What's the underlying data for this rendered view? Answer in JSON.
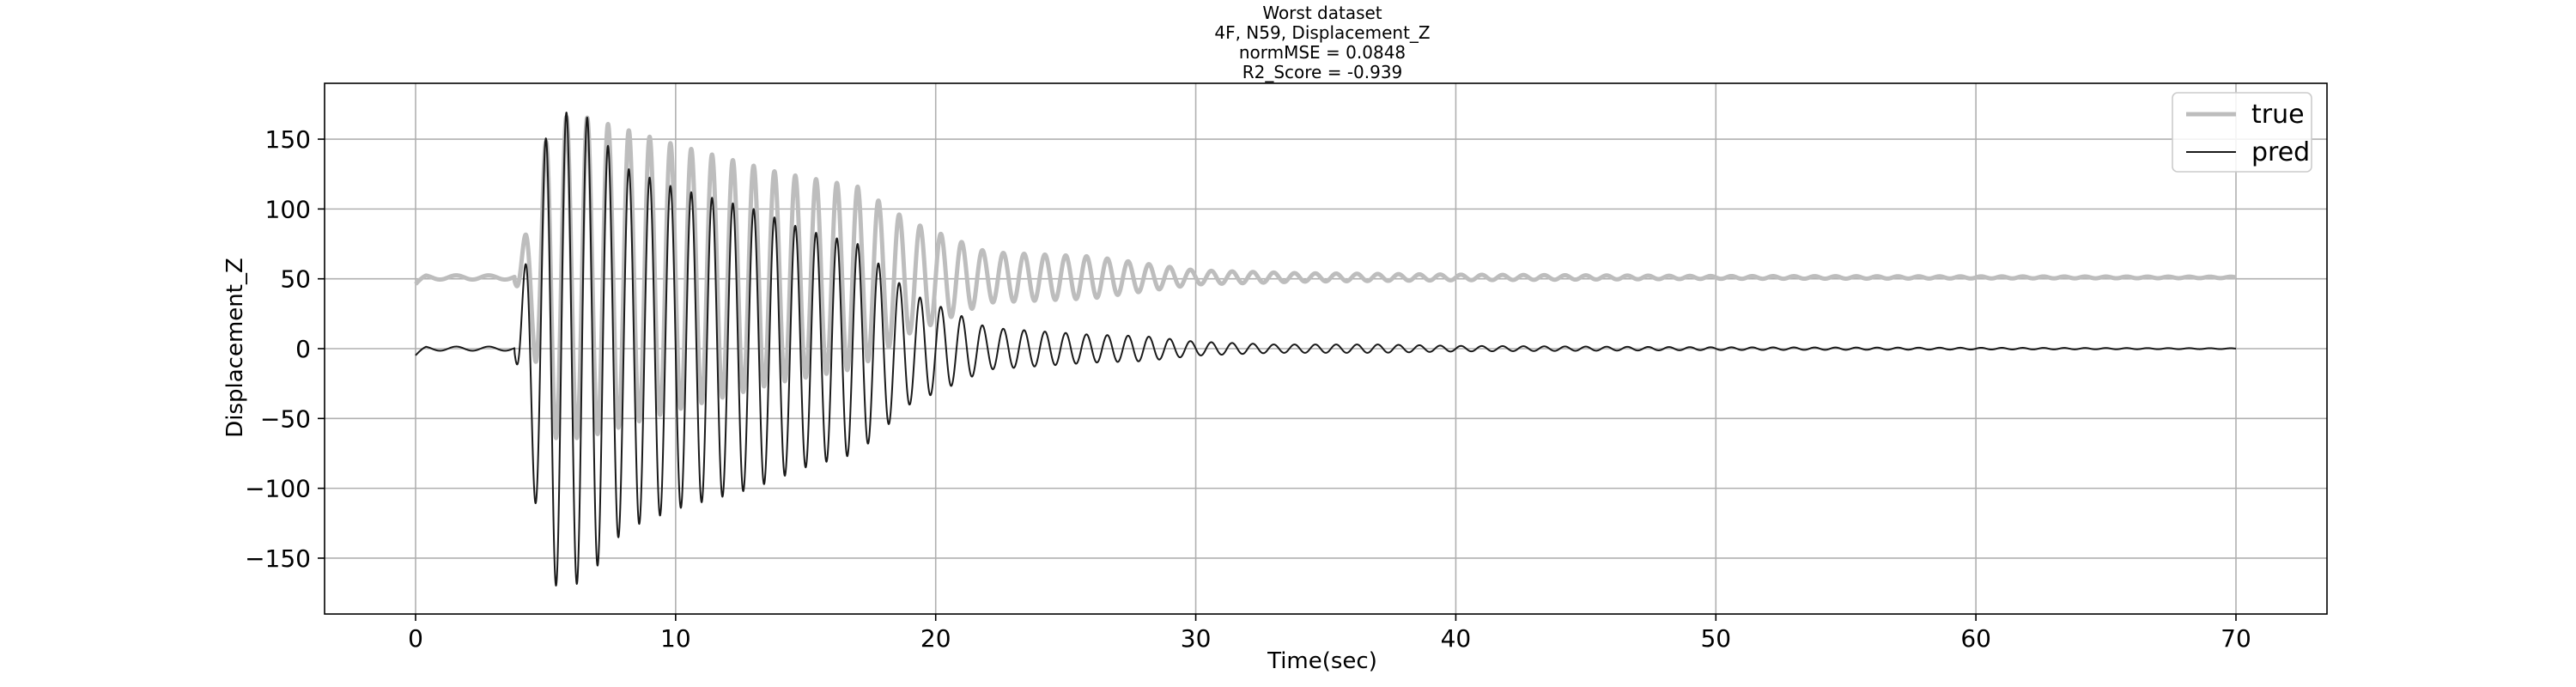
{
  "chart_data": {
    "type": "line",
    "title_lines": [
      "Worst dataset",
      "4F, N59, Displacement_Z",
      "normMSE = 0.0848",
      "R2_Score = -0.939"
    ],
    "xlabel": "Time(sec)",
    "ylabel": "Displacement_Z",
    "xlim": [
      -3.5,
      73.5
    ],
    "ylim": [
      -190,
      190
    ],
    "x_ticks": [
      0,
      10,
      20,
      30,
      40,
      50,
      60,
      70
    ],
    "y_ticks": [
      -150,
      -100,
      -50,
      0,
      50,
      100,
      150
    ],
    "x_tick_labels": [
      "0",
      "10",
      "20",
      "30",
      "40",
      "50",
      "60",
      "70"
    ],
    "y_tick_labels": [
      "−150",
      "−100",
      "−50",
      "0",
      "50",
      "100",
      "150"
    ],
    "grid": true,
    "legend_position": "top-right",
    "series": [
      {
        "name": "true",
        "color": "#bdbdbd",
        "style": "thick",
        "signal": {
          "offset": 51,
          "frequency_hz": 1.25,
          "onset_sec": 3.8,
          "end_sec": 70,
          "envelope": [
            [
              0,
              0
            ],
            [
              3.8,
              2
            ],
            [
              4.5,
              50
            ],
            [
              5.2,
              115
            ],
            [
              6.5,
              115
            ],
            [
              10,
              95
            ],
            [
              14,
              75
            ],
            [
              17,
              65
            ],
            [
              19,
              40
            ],
            [
              22,
              18
            ],
            [
              26,
              15
            ],
            [
              28,
              10
            ],
            [
              30,
              5
            ],
            [
              34,
              3
            ],
            [
              40,
              2
            ],
            [
              50,
              1
            ],
            [
              70,
              0.5
            ]
          ]
        }
      },
      {
        "name": "pred",
        "color": "#1a1a1a",
        "style": "thin",
        "signal": {
          "offset": 0,
          "frequency_hz": 1.25,
          "onset_sec": 3.8,
          "end_sec": 70,
          "envelope": [
            [
              0,
              0
            ],
            [
              3.8,
              2
            ],
            [
              4.5,
              100
            ],
            [
              5.2,
              170
            ],
            [
              6.5,
              168
            ],
            [
              8,
              130
            ],
            [
              10,
              115
            ],
            [
              13,
              100
            ],
            [
              15,
              85
            ],
            [
              17,
              75
            ],
            [
              19,
              40
            ],
            [
              22,
              15
            ],
            [
              26,
              10
            ],
            [
              28,
              9
            ],
            [
              30,
              5
            ],
            [
              33,
              3
            ],
            [
              37,
              3
            ],
            [
              40,
              2
            ],
            [
              50,
              1
            ],
            [
              70,
              0.3
            ]
          ]
        }
      }
    ]
  }
}
